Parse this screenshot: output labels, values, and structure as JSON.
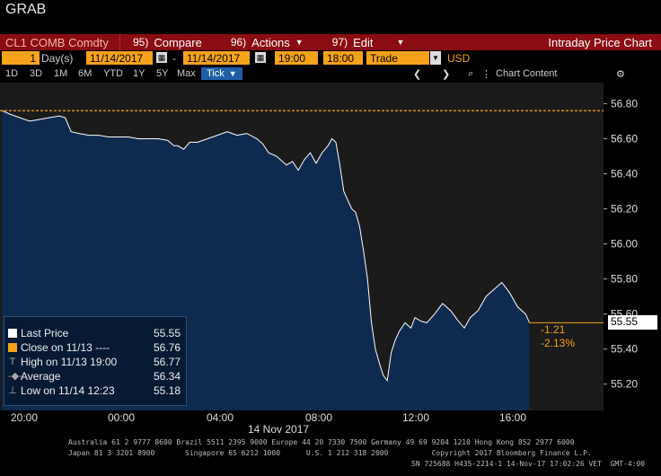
{
  "window": {
    "title": "GRAB"
  },
  "menu": {
    "ticker": "CL1 COMB Comdty",
    "compare": {
      "num": "95)",
      "label": "Compare"
    },
    "actions": {
      "num": "96)",
      "label": "Actions"
    },
    "edit": {
      "num": "97)",
      "label": "Edit"
    },
    "title": "Intraday Price Chart"
  },
  "controls": {
    "period_value": "1",
    "period_unit": "Day(s)",
    "start_date": "11/14/2017",
    "separator": "-",
    "end_date": "11/14/2017",
    "start_time": "19:00",
    "end_time": "18:00",
    "mode": "Trade",
    "currency": "USD"
  },
  "ranges": [
    "1D",
    "3D",
    "1M",
    "6M",
    "YTD",
    "1Y",
    "5Y",
    "Max"
  ],
  "tick_label": "Tick",
  "chart_content_label": "Chart Content",
  "chart_data": {
    "type": "area",
    "y_ticks": [
      "56.80",
      "56.60",
      "56.40",
      "56.20",
      "56.00",
      "55.80",
      "55.60",
      "55.40",
      "55.20"
    ],
    "ylim": [
      55.05,
      56.92
    ],
    "x_ticks": [
      "20:00",
      "00:00",
      "04:00",
      "08:00",
      "12:00",
      "16:00"
    ],
    "x_date_label": "14 Nov 2017",
    "prev_close": 56.76,
    "last_price": "55.55",
    "change": "-1.21",
    "change_pct": "-2.13%",
    "series": [
      {
        "values": [
          [
            19.1,
            56.76
          ],
          [
            19.5,
            56.74
          ],
          [
            20.0,
            56.72
          ],
          [
            20.5,
            56.7
          ],
          [
            21.0,
            56.71
          ],
          [
            21.5,
            56.72
          ],
          [
            22.0,
            56.73
          ],
          [
            22.3,
            56.72
          ],
          [
            22.6,
            56.64
          ],
          [
            23.0,
            56.63
          ],
          [
            23.5,
            56.62
          ],
          [
            24.0,
            56.62
          ],
          [
            24.5,
            56.61
          ],
          [
            25.0,
            56.61
          ],
          [
            25.5,
            56.61
          ],
          [
            26.0,
            56.6
          ],
          [
            26.5,
            56.6
          ],
          [
            27.0,
            56.6
          ],
          [
            27.5,
            56.59
          ],
          [
            27.8,
            56.56
          ],
          [
            28.0,
            56.56
          ],
          [
            28.3,
            56.54
          ],
          [
            28.6,
            56.58
          ],
          [
            29.0,
            56.58
          ],
          [
            29.5,
            56.6
          ],
          [
            30.0,
            56.62
          ],
          [
            30.5,
            56.64
          ],
          [
            31.0,
            56.62
          ],
          [
            31.5,
            56.63
          ],
          [
            32.0,
            56.6
          ],
          [
            32.3,
            56.57
          ],
          [
            32.6,
            56.52
          ],
          [
            33.0,
            56.5
          ],
          [
            33.5,
            56.45
          ],
          [
            33.8,
            56.47
          ],
          [
            34.1,
            56.42
          ],
          [
            34.4,
            56.48
          ],
          [
            34.7,
            56.52
          ],
          [
            35.0,
            56.46
          ],
          [
            35.3,
            56.52
          ],
          [
            35.6,
            56.56
          ],
          [
            35.8,
            56.6
          ],
          [
            36.0,
            56.58
          ],
          [
            36.2,
            56.45
          ],
          [
            36.4,
            56.3
          ],
          [
            36.6,
            56.25
          ],
          [
            36.8,
            56.2
          ],
          [
            37.0,
            56.18
          ],
          [
            37.2,
            56.1
          ],
          [
            37.4,
            55.96
          ],
          [
            37.6,
            55.8
          ],
          [
            37.8,
            55.55
          ],
          [
            38.0,
            55.4
          ],
          [
            38.2,
            55.32
          ],
          [
            38.4,
            55.25
          ],
          [
            38.6,
            55.22
          ],
          [
            38.8,
            55.38
          ],
          [
            39.0,
            55.45
          ],
          [
            39.2,
            55.5
          ],
          [
            39.5,
            55.55
          ],
          [
            39.8,
            55.52
          ],
          [
            40.0,
            55.58
          ],
          [
            40.3,
            55.56
          ],
          [
            40.6,
            55.55
          ],
          [
            41.0,
            55.6
          ],
          [
            41.4,
            55.66
          ],
          [
            41.8,
            55.62
          ],
          [
            42.2,
            55.56
          ],
          [
            42.5,
            55.52
          ],
          [
            42.8,
            55.58
          ],
          [
            43.2,
            55.62
          ],
          [
            43.6,
            55.7
          ],
          [
            44.0,
            55.74
          ],
          [
            44.4,
            55.78
          ],
          [
            44.8,
            55.72
          ],
          [
            45.2,
            55.64
          ],
          [
            45.6,
            55.6
          ],
          [
            45.8,
            55.55
          ]
        ]
      }
    ]
  },
  "legend": {
    "last_price": {
      "label": "Last Price",
      "value": "55.55",
      "color": "#ffffff"
    },
    "close": {
      "label": "Close on 11/13 ----",
      "value": "56.76",
      "color": "#f7a21b"
    },
    "high": {
      "label": "High on 11/13 19:00",
      "value": "56.77"
    },
    "average": {
      "label": "Average",
      "value": "56.34"
    },
    "low": {
      "label": "Low on 11/14 12:23",
      "value": "55.18"
    }
  },
  "footer": {
    "line1": "Australia 61 2 9777 8600 Brazil 5511 2395 9000 Europe 44 20 7330 7500 Germany 49 69 9204 1210 Hong Kong 852 2977 6000",
    "line2": "Japan 81 3 3201 8900       Singapore 65 6212 1000      U.S. 1 212 318 2000          Copyright 2017 Bloomberg Finance L.P.",
    "line3": "SN 725688 H435-2214-1 14-Nov-17 17:02:26 VET  GMT-4:00"
  },
  "colors": {
    "accent_orange": "#f7a21b",
    "menu_red": "#8b0c12",
    "area_fill": "#0e2a4f",
    "line": "#ffffff",
    "plot_bg": "#1b1b1b"
  }
}
